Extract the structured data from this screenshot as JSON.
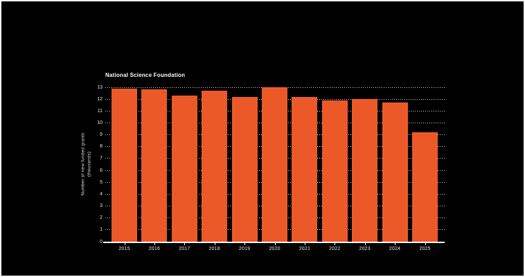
{
  "frame": {
    "background_color": "#000000",
    "border_color": "#ffffff"
  },
  "chart_data": {
    "type": "bar",
    "title": "National Science Foundation",
    "categories": [
      "2015",
      "2016",
      "2017",
      "2018",
      "2019",
      "2020",
      "2021",
      "2022",
      "2023",
      "2024",
      "2025"
    ],
    "values": [
      12.9,
      12.8,
      12.3,
      12.7,
      12.2,
      13.0,
      12.2,
      11.9,
      12.0,
      11.7,
      9.2
    ],
    "xlabel": "",
    "ylabel_lines": [
      "Number of new funded grants",
      "(thousands)"
    ],
    "ylim": [
      0,
      13
    ],
    "ytick_step": 1,
    "grid": "horizontal-dotted",
    "legend": "none",
    "colors": {
      "bar": "#EC5928",
      "gridline": "rgba(255,255,255,0.85)",
      "baseline": "#ffffff",
      "title_text": "#ffffff",
      "tick_text": "#e8e8e8",
      "axis_label_text": "#d9d9d9"
    }
  }
}
